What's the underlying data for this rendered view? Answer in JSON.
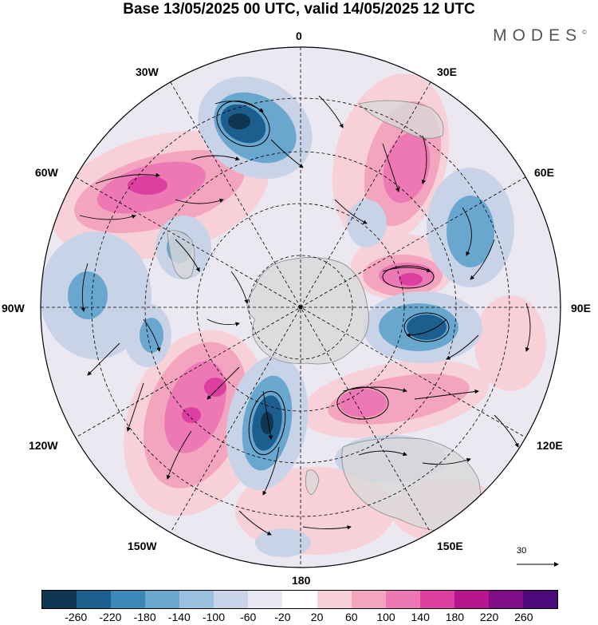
{
  "title": "Base 13/05/2025 00 UTC, valid 14/05/2025 12 UTC",
  "brand": "MODES",
  "brand_mark": "©",
  "longitude_labels": {
    "lon_0": "0",
    "lon_30e": "30E",
    "lon_60e": "60E",
    "lon_90e": "90E",
    "lon_120e": "120E",
    "lon_150e": "150E",
    "lon_180": "180",
    "lon_150w": "150W",
    "lon_120w": "120W",
    "lon_90w": "90W",
    "lon_60w": "60W",
    "lon_30w": "30W"
  },
  "vector_reference": "30",
  "colorbar": {
    "colors": [
      "#0f3550",
      "#1c5f8f",
      "#3a88b8",
      "#6aa7cf",
      "#9bbfdf",
      "#c9d3e8",
      "#e8e8f2",
      "#ffffff",
      "#f7d0d8",
      "#f3a5bf",
      "#ec79b4",
      "#dc3fa0",
      "#b5168c",
      "#7e0d86",
      "#4b0a78"
    ],
    "ticks": [
      "-260",
      "-220",
      "-180",
      "-140",
      "-100",
      "-60",
      "-20",
      "20",
      "60",
      "100",
      "140",
      "180",
      "220",
      "260"
    ]
  },
  "map_colors": {
    "land": "#d8d8d8",
    "background": "#ebe8f2",
    "neg_weak": "#c9d3e8",
    "neg_mid": "#6aa7cf",
    "neg_strong": "#1c5f8f",
    "neg_core": "#0f3550",
    "pos_weak": "#f7d0d8",
    "pos_mid": "#ec79b4",
    "pos_strong": "#dc3fa0",
    "pos_core": "#b5168c"
  }
}
